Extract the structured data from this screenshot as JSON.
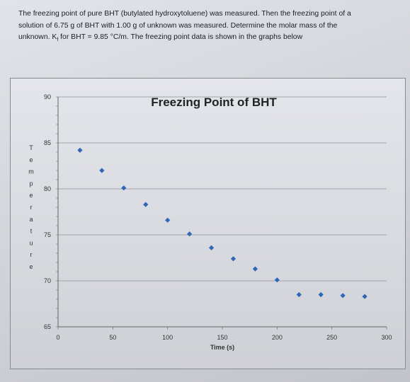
{
  "problem": {
    "line1": "The freezing point of pure BHT (butylated hydroxytoluene) was measured.  Then the freezing point of a",
    "line2": "solution of 6.75 g of BHT with 1.00 g of unknown was measured.  Determine the molar mass of the",
    "line3_prefix": "unknown.  K",
    "line3_sub": "f",
    "line3_suffix": " for BHT = 9.85 °C/m.  The freezing point data is shown in the graphs below"
  },
  "chart_data": {
    "type": "scatter",
    "title": "Freezing Point of BHT",
    "xlabel": "Time (s)",
    "ylabel": "Temperature",
    "xlim": [
      0,
      300
    ],
    "ylim": [
      65,
      90
    ],
    "x_ticks": [
      0,
      50,
      100,
      150,
      200,
      250,
      300
    ],
    "y_ticks": [
      65,
      70,
      75,
      80,
      85,
      90
    ],
    "grid": "horizontal",
    "marker_color": "#2f66b8",
    "series": [
      {
        "x": [
          20,
          40,
          60,
          80,
          100,
          120,
          140,
          160,
          180,
          200,
          220,
          240,
          260,
          280
        ],
        "y": [
          84.2,
          82.0,
          80.1,
          78.3,
          76.6,
          75.1,
          73.6,
          72.4,
          71.3,
          70.1,
          68.5,
          68.5,
          68.4,
          68.3
        ]
      }
    ]
  }
}
